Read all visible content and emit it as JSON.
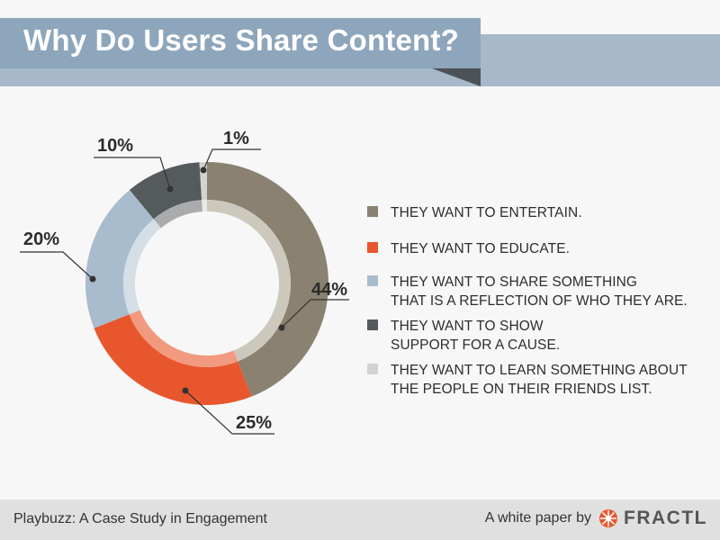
{
  "header": {
    "title": "Why Do Users Share Content?"
  },
  "chart_data": {
    "type": "pie",
    "categories": [
      "THEY WANT TO ENTERTAIN.",
      "THEY WANT TO EDUCATE.",
      "THEY WANT TO SHARE SOMETHING\nTHAT IS A REFLECTION OF WHO THEY ARE.",
      "THEY WANT TO SHOW\nSUPPORT FOR A CAUSE.",
      "THEY WANT TO LEARN SOMETHING ABOUT\nTHE PEOPLE ON THEIR FRIENDS LIST."
    ],
    "values": [
      44,
      25,
      20,
      10,
      1
    ],
    "labels": [
      "44%",
      "25%",
      "20%",
      "10%",
      "1%"
    ],
    "colors": [
      "#8a8170",
      "#e8562d",
      "#a9bccd",
      "#555a5d",
      "#d2d2d2"
    ],
    "inner_colors": [
      "#cdc8bc",
      "#f19a7f",
      "#d4dee6",
      "#a9abac",
      "#e9e9e9"
    ],
    "legend_position": "right",
    "style": "donut"
  },
  "footer": {
    "left_text": "Playbuzz: A Case Study in Engagement",
    "right_text": "A white paper by",
    "brand": "FRACTL"
  }
}
